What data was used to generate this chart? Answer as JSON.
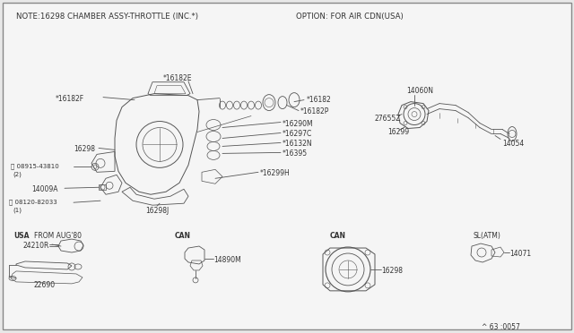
{
  "bg_color": "#e8e8e8",
  "border_color": "#999999",
  "inner_bg": "#f5f5f5",
  "title_note": "NOTE㨖298 CHAMBER ASSY-THROTTLE （INC.×）",
  "title_note2": "NOTE:16298 CHAMBER ASSY-THROTTLE (INC.*)",
  "title_option": "OPTION: FOR AIR CDN(USA)",
  "footer": "^ 63 :0057",
  "lc": "#555555",
  "tc": "#333333",
  "fs": 6.0,
  "fsh": 6.5
}
